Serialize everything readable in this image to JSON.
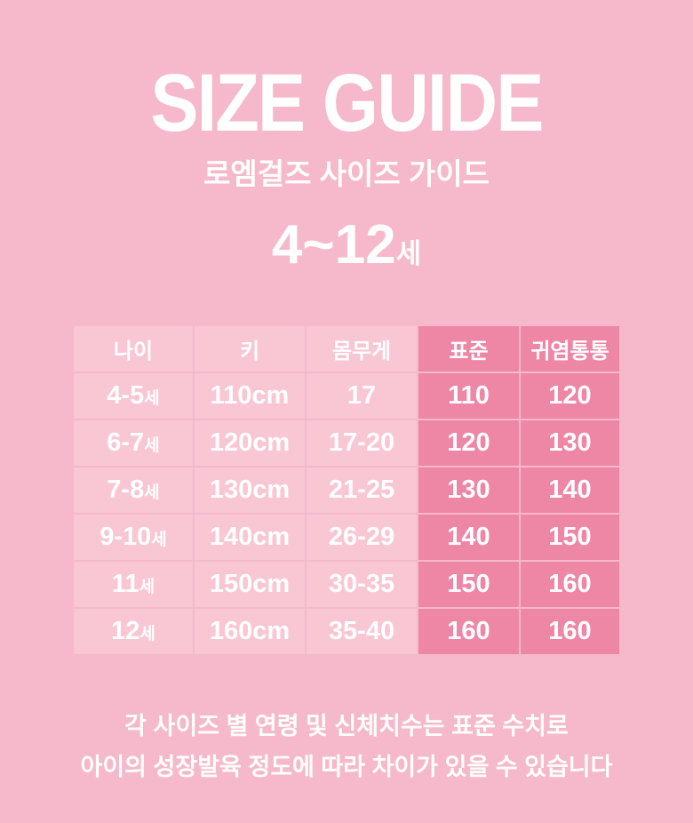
{
  "colors": {
    "background": "#f5b9cb",
    "cell_light": "#f9c6d4",
    "cell_dark": "#ee86a6",
    "text": "#ffffff"
  },
  "header": {
    "title": "SIZE GUIDE",
    "subtitle": "로엠걸즈 사이즈 가이드",
    "age_range": "4~12",
    "age_suffix": "세"
  },
  "table": {
    "columns": [
      {
        "label": "나이"
      },
      {
        "label": "키"
      },
      {
        "label": "몸무게"
      },
      {
        "label": "표준"
      },
      {
        "label": "귀염통통"
      }
    ],
    "rows": [
      {
        "age": "4-5",
        "age_suffix": "세",
        "height": "110cm",
        "weight": "17",
        "standard": "110",
        "chubby": "120"
      },
      {
        "age": "6-7",
        "age_suffix": "세",
        "height": "120cm",
        "weight": "17-20",
        "standard": "120",
        "chubby": "130"
      },
      {
        "age": "7-8",
        "age_suffix": "세",
        "height": "130cm",
        "weight": "21-25",
        "standard": "130",
        "chubby": "140"
      },
      {
        "age": "9-10",
        "age_suffix": "세",
        "height": "140cm",
        "weight": "26-29",
        "standard": "140",
        "chubby": "150"
      },
      {
        "age": "11",
        "age_suffix": "세",
        "height": "150cm",
        "weight": "30-35",
        "standard": "150",
        "chubby": "160"
      },
      {
        "age": "12",
        "age_suffix": "세",
        "height": "160cm",
        "weight": "35-40",
        "standard": "160",
        "chubby": "160"
      }
    ]
  },
  "footer": {
    "line1": "각 사이즈 별 연령 및 신체치수는 표준 수치로",
    "line2": "아이의 성장발육 정도에 따라 차이가 있을 수 있습니다"
  }
}
